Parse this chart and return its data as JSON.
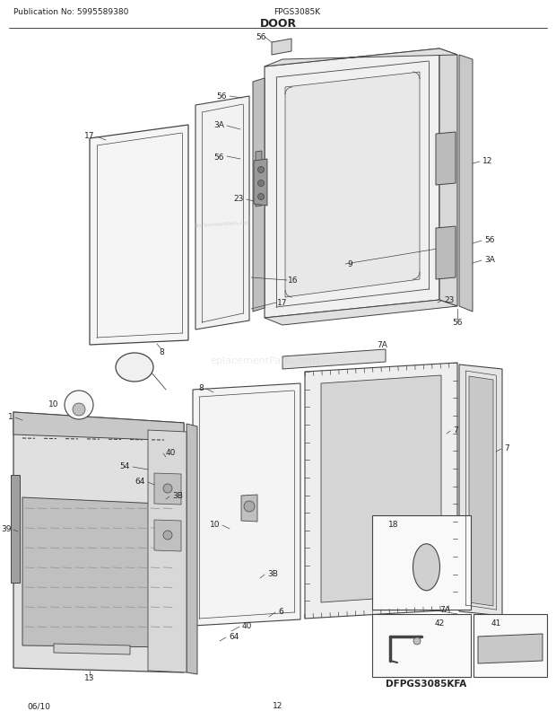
{
  "title": "DOOR",
  "pub_no": "Publication No: 5995589380",
  "model": "FPGS3085K",
  "diagram_code": "DFPGS3085KFA",
  "date": "06/10",
  "page": "12",
  "bg_color": "#ffffff",
  "lc": "#444444",
  "tc": "#222222",
  "figsize": [
    6.2,
    8.03
  ],
  "dpi": 100
}
